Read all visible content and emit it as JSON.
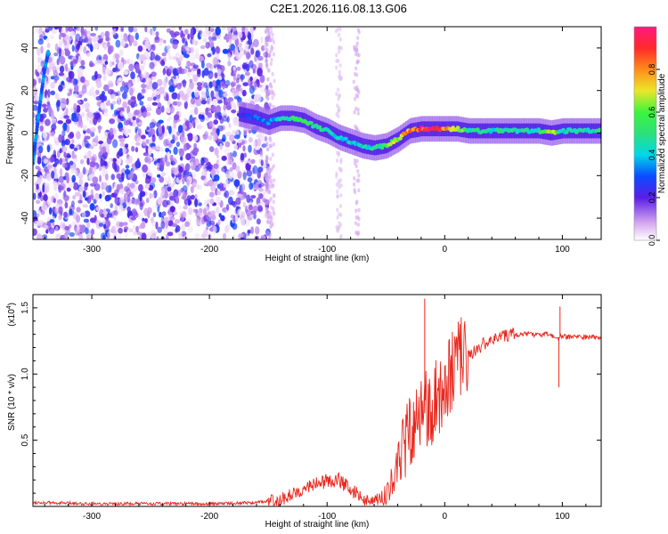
{
  "figure": {
    "title": "C2E1.2026.116.08.13.G06"
  },
  "chart_data": [
    {
      "type": "heatmap",
      "xlabel": "Height of straight line (km)",
      "ylabel": "Frequency (Hz)",
      "xlim": [
        -350,
        133
      ],
      "ylim": [
        -50,
        50
      ],
      "xticks": [
        -300,
        -200,
        -100,
        0,
        100
      ],
      "yticks": [
        -40,
        -20,
        0,
        20,
        40
      ],
      "colorbar": {
        "label": "Normalized spectral amplitude",
        "range": [
          0,
          1
        ],
        "ticks": [
          "0.0",
          "0.2",
          "0.4",
          "0.6",
          "0.8"
        ],
        "tick_values": [
          0.0,
          0.2,
          0.4,
          0.6,
          0.8
        ]
      },
      "signal_track": {
        "description": "frequency of dominant carrier vs height",
        "x": [
          -175,
          -160,
          -150,
          -140,
          -130,
          -120,
          -110,
          -100,
          -90,
          -80,
          -70,
          -60,
          -50,
          -40,
          -30,
          -20,
          -10,
          0,
          10,
          20,
          40,
          60,
          80,
          90,
          100,
          133
        ],
        "y": [
          9,
          7,
          5,
          7,
          7,
          6,
          3,
          1,
          -2,
          -4,
          -6,
          -7,
          -6,
          -3,
          1,
          2,
          2,
          2,
          2,
          1,
          1,
          1,
          1,
          0,
          1,
          1
        ],
        "amplitude": [
          0.22,
          0.3,
          0.35,
          0.42,
          0.48,
          0.5,
          0.5,
          0.45,
          0.42,
          0.4,
          0.4,
          0.48,
          0.55,
          0.65,
          0.8,
          0.92,
          0.95,
          0.85,
          0.7,
          0.5,
          0.45,
          0.47,
          0.45,
          0.7,
          0.45,
          0.45
        ]
      },
      "left_edge_track": {
        "x": [
          -350,
          -347,
          -343,
          -340,
          -337
        ],
        "y": [
          -14,
          0,
          18,
          30,
          38
        ]
      },
      "noise_region": {
        "x": [
          -350,
          -150
        ],
        "amplitude_range": [
          0.02,
          0.3
        ]
      }
    },
    {
      "type": "line",
      "xlabel": "Height of straight line (km)",
      "ylabel": "SNR (10 * v/v)",
      "y_scale_label": "(x10",
      "y_scale_exponent": "4",
      "xlim": [
        -350,
        133
      ],
      "ylim": [
        0,
        1.6
      ],
      "xticks": [
        -300,
        -200,
        -100,
        0,
        100
      ],
      "yticks": [
        "0.5",
        "1.0",
        "1.5"
      ],
      "ytick_values": [
        0.5,
        1.0,
        1.5
      ],
      "series": [
        {
          "name": "SNR",
          "color": "#e8271d",
          "x": [
            -350,
            -300,
            -250,
            -200,
            -160,
            -140,
            -130,
            -120,
            -110,
            -100,
            -90,
            -80,
            -70,
            -60,
            -50,
            -45,
            -40,
            -35,
            -30,
            -25,
            -20,
            -15,
            -10,
            -5,
            0,
            5,
            10,
            15,
            20,
            30,
            40,
            50,
            60,
            80,
            90,
            95,
            100,
            105,
            110,
            120,
            133
          ],
          "y": [
            0.03,
            0.02,
            0.02,
            0.02,
            0.03,
            0.05,
            0.09,
            0.14,
            0.17,
            0.19,
            0.2,
            0.13,
            0.06,
            0.03,
            0.09,
            0.2,
            0.3,
            0.45,
            0.55,
            0.62,
            0.68,
            0.72,
            0.8,
            0.85,
            0.95,
            1.02,
            1.07,
            1.1,
            1.14,
            1.21,
            1.26,
            1.29,
            1.3,
            1.3,
            1.3,
            1.27,
            1.29,
            1.28,
            1.28,
            1.28,
            1.28
          ]
        }
      ],
      "spikes": [
        {
          "x": -17,
          "y": 1.57
        },
        {
          "x": 97,
          "y": 0.9
        },
        {
          "x": 98,
          "y": 1.51
        }
      ]
    }
  ]
}
